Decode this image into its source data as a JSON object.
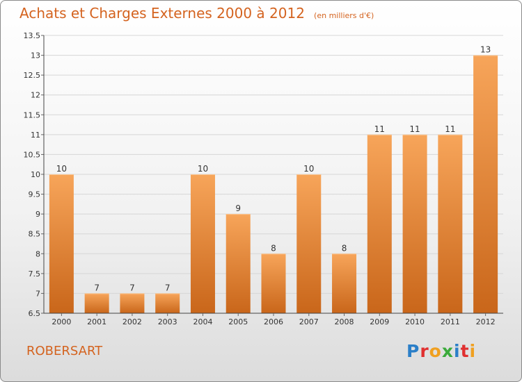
{
  "title": "Achats et Charges Externes 2000 à 2012",
  "subtitle": "(en milliers d'€)",
  "commune": "ROBERSART",
  "logo": "Proxiti",
  "colors": {
    "title": "#d4631f",
    "bar_top": "#f7a55a",
    "bar_bottom": "#c9661a",
    "logo_letters": [
      "#2b7fc8",
      "#e03030",
      "#f0a020",
      "#3aaa3a",
      "#2b7fc8",
      "#e03030",
      "#f0a020"
    ]
  },
  "chart_data": {
    "type": "bar",
    "categories": [
      "2000",
      "2001",
      "2002",
      "2003",
      "2004",
      "2005",
      "2006",
      "2007",
      "2008",
      "2009",
      "2010",
      "2011",
      "2012"
    ],
    "values": [
      10,
      7,
      7,
      7,
      10,
      9,
      8,
      10,
      8,
      11,
      11,
      11,
      13
    ],
    "ylim": [
      6.5,
      13.5
    ],
    "yticks": [
      "6.5",
      "7",
      "7.5",
      "8",
      "8.5",
      "9",
      "9.5",
      "10",
      "10.5",
      "11",
      "11.5",
      "12",
      "12.5",
      "13",
      "13.5"
    ],
    "grid": true
  }
}
